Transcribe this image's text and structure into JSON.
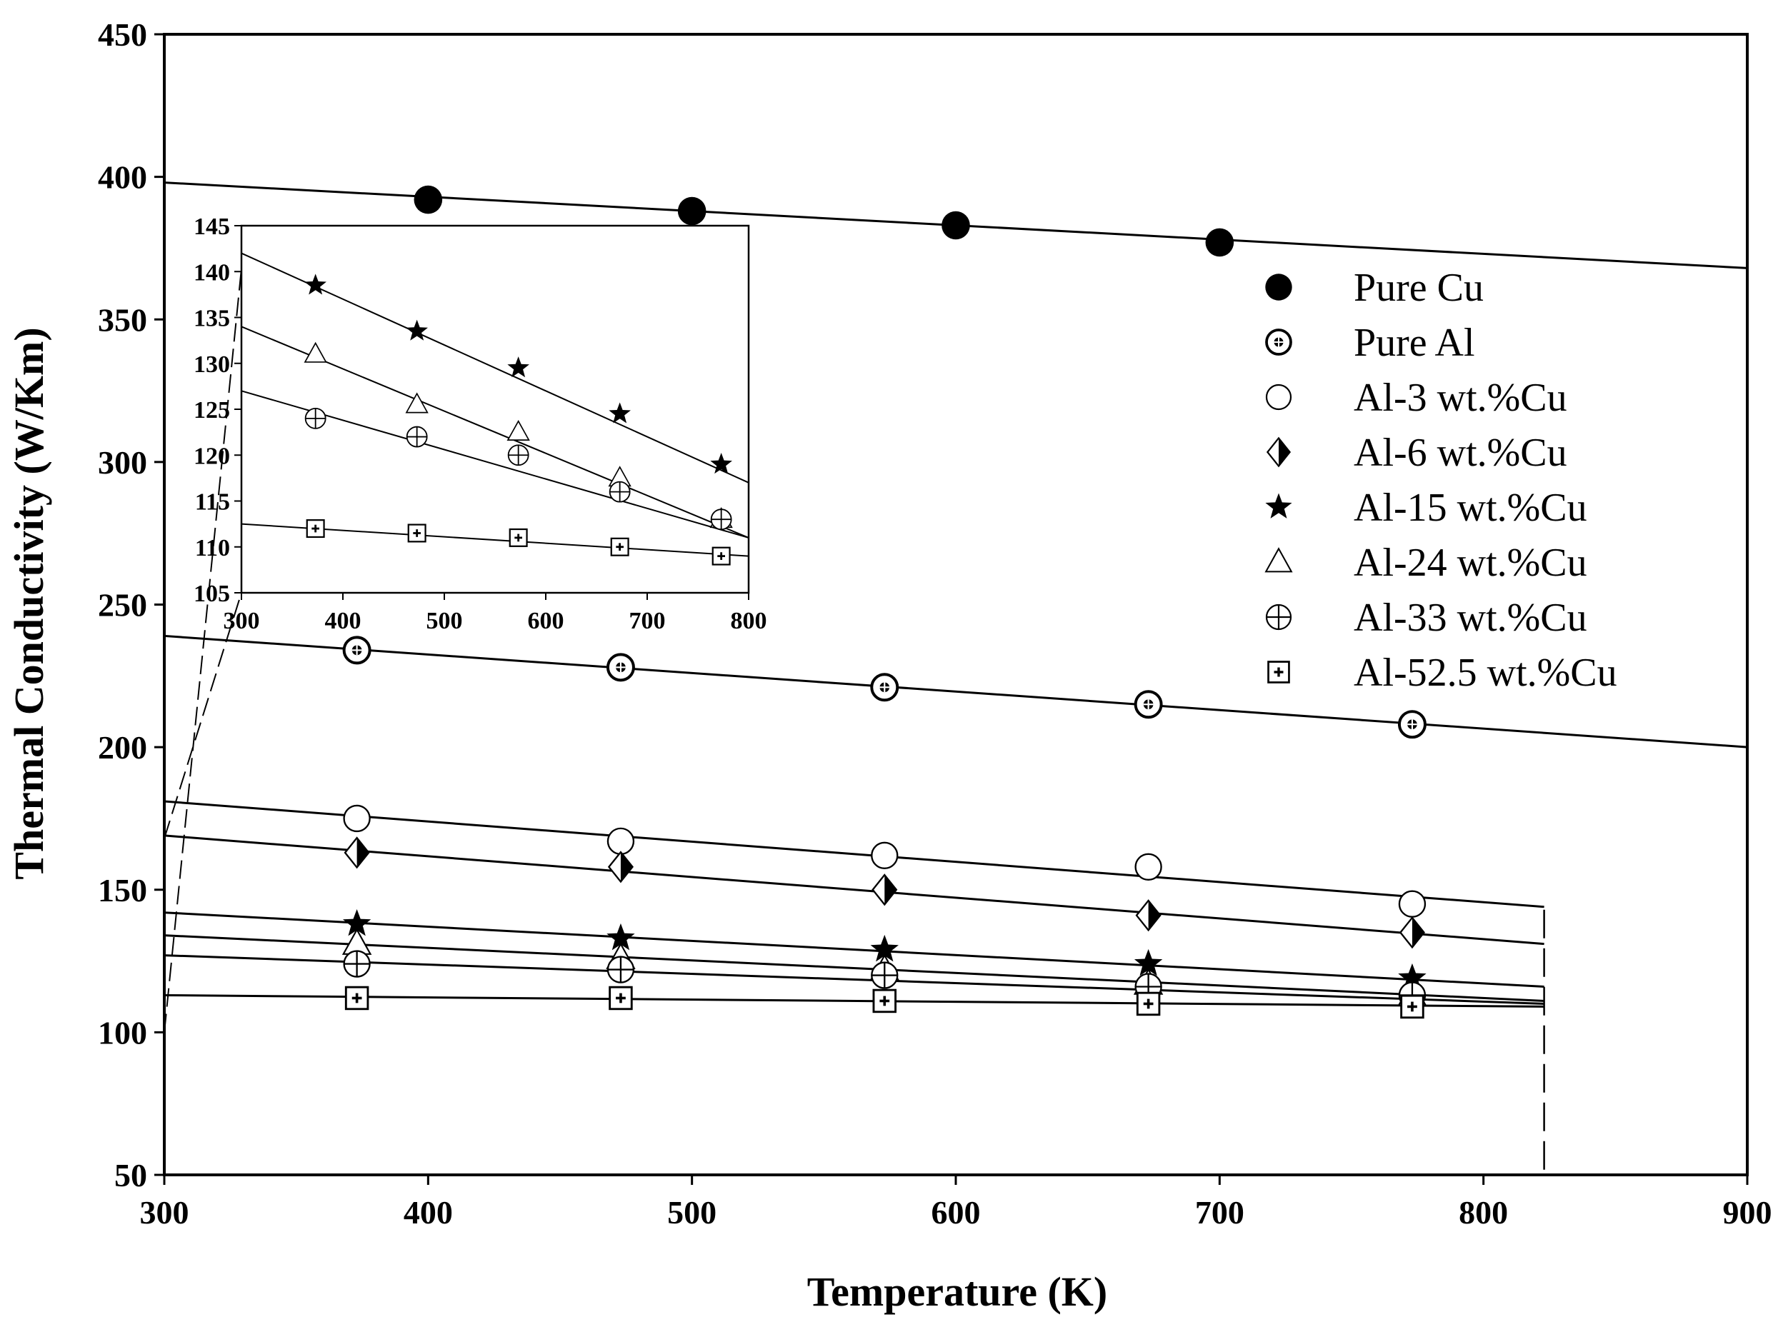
{
  "chart_data": {
    "type": "scatter",
    "title": "",
    "xlabel": "Temperature (K)",
    "ylabel": "Thermal Conductivity (W/Km)",
    "xlim": [
      300,
      900
    ],
    "ylim": [
      50,
      450
    ],
    "x_ticks": [
      "300",
      "400",
      "500",
      "600",
      "700",
      "800",
      "900"
    ],
    "y_ticks": [
      "50",
      "100",
      "150",
      "200",
      "250",
      "300",
      "350",
      "400",
      "450"
    ],
    "legend_position": "top-right",
    "series": [
      {
        "name": "Pure Cu",
        "marker": "filled-circle",
        "x": [
          400,
          500,
          600,
          700
        ],
        "y": [
          392,
          388,
          383,
          377
        ],
        "fit": {
          "x": [
            300,
            900
          ],
          "y": [
            398,
            368
          ]
        }
      },
      {
        "name": "Pure Al",
        "marker": "circle-dot",
        "x": [
          373,
          473,
          573,
          673,
          773
        ],
        "y": [
          234,
          228,
          221,
          215,
          208
        ],
        "fit": {
          "x": [
            300,
            900
          ],
          "y": [
            239,
            200
          ]
        }
      },
      {
        "name": "Al-3 wt.%Cu",
        "marker": "open-circle",
        "x": [
          373,
          473,
          573,
          673,
          773
        ],
        "y": [
          175,
          167,
          162,
          158,
          145
        ],
        "fit": {
          "x": [
            300,
            823
          ],
          "y": [
            181,
            144
          ]
        }
      },
      {
        "name": "Al-6 wt.%Cu",
        "marker": "half-diamond",
        "x": [
          373,
          473,
          573,
          673,
          773
        ],
        "y": [
          163,
          158,
          150,
          141,
          135
        ],
        "fit": {
          "x": [
            300,
            823
          ],
          "y": [
            169,
            131
          ]
        }
      },
      {
        "name": "Al-15 wt.%Cu",
        "marker": "filled-star",
        "x": [
          373,
          473,
          573,
          673,
          773
        ],
        "y": [
          138,
          133,
          129,
          124,
          119
        ],
        "fit": {
          "x": [
            300,
            823
          ],
          "y": [
            142,
            116
          ]
        }
      },
      {
        "name": "Al-24 wt.%Cu",
        "marker": "open-triangle",
        "x": [
          373,
          473,
          573,
          673,
          773
        ],
        "y": [
          131,
          126,
          122,
          117,
          113
        ],
        "fit": {
          "x": [
            300,
            823
          ],
          "y": [
            134,
            111
          ]
        }
      },
      {
        "name": "Al-33 wt.%Cu",
        "marker": "circle-plus",
        "x": [
          373,
          473,
          573,
          673,
          773
        ],
        "y": [
          124,
          122,
          120,
          116,
          113
        ],
        "fit": {
          "x": [
            300,
            823
          ],
          "y": [
            127,
            110
          ]
        }
      },
      {
        "name": "Al-52.5 wt.%Cu",
        "marker": "square-dot",
        "x": [
          373,
          473,
          573,
          673,
          773
        ],
        "y": [
          112,
          112,
          111,
          110,
          109
        ],
        "fit": {
          "x": [
            300,
            823
          ],
          "y": [
            113,
            109
          ]
        }
      }
    ],
    "inset": {
      "xlim": [
        300,
        800
      ],
      "ylim": [
        105,
        145
      ],
      "x_ticks": [
        "300",
        "400",
        "500",
        "600",
        "700",
        "800"
      ],
      "y_ticks": [
        "105",
        "110",
        "115",
        "120",
        "125",
        "130",
        "135",
        "140",
        "145"
      ],
      "series": [
        {
          "name": "Al-15 wt.%Cu",
          "marker": "filled-star",
          "x": [
            373,
            473,
            573,
            673,
            773
          ],
          "y": [
            138.5,
            133.5,
            129.5,
            124.5,
            119
          ],
          "fit": {
            "x": [
              300,
              800
            ],
            "y": [
              142,
              117
            ]
          }
        },
        {
          "name": "Al-24 wt.%Cu",
          "marker": "open-triangle",
          "x": [
            373,
            473,
            573,
            673,
            773
          ],
          "y": [
            131,
            125.5,
            122.5,
            117.5,
            113
          ],
          "fit": {
            "x": [
              300,
              800
            ],
            "y": [
              134,
              111
            ]
          }
        },
        {
          "name": "Al-33 wt.%Cu",
          "marker": "circle-plus",
          "x": [
            373,
            473,
            573,
            673,
            773
          ],
          "y": [
            124,
            122,
            120,
            116,
            113
          ],
          "fit": {
            "x": [
              300,
              800
            ],
            "y": [
              127,
              111
            ]
          }
        },
        {
          "name": "Al-52.5 wt.%Cu",
          "marker": "square-dot",
          "x": [
            373,
            473,
            573,
            673,
            773
          ],
          "y": [
            112,
            111.5,
            111,
            110,
            109
          ],
          "fit": {
            "x": [
              300,
              800
            ],
            "y": [
              112.5,
              109
            ]
          }
        }
      ]
    },
    "colors": {
      "ink": "#000000",
      "background": "#ffffff"
    }
  }
}
